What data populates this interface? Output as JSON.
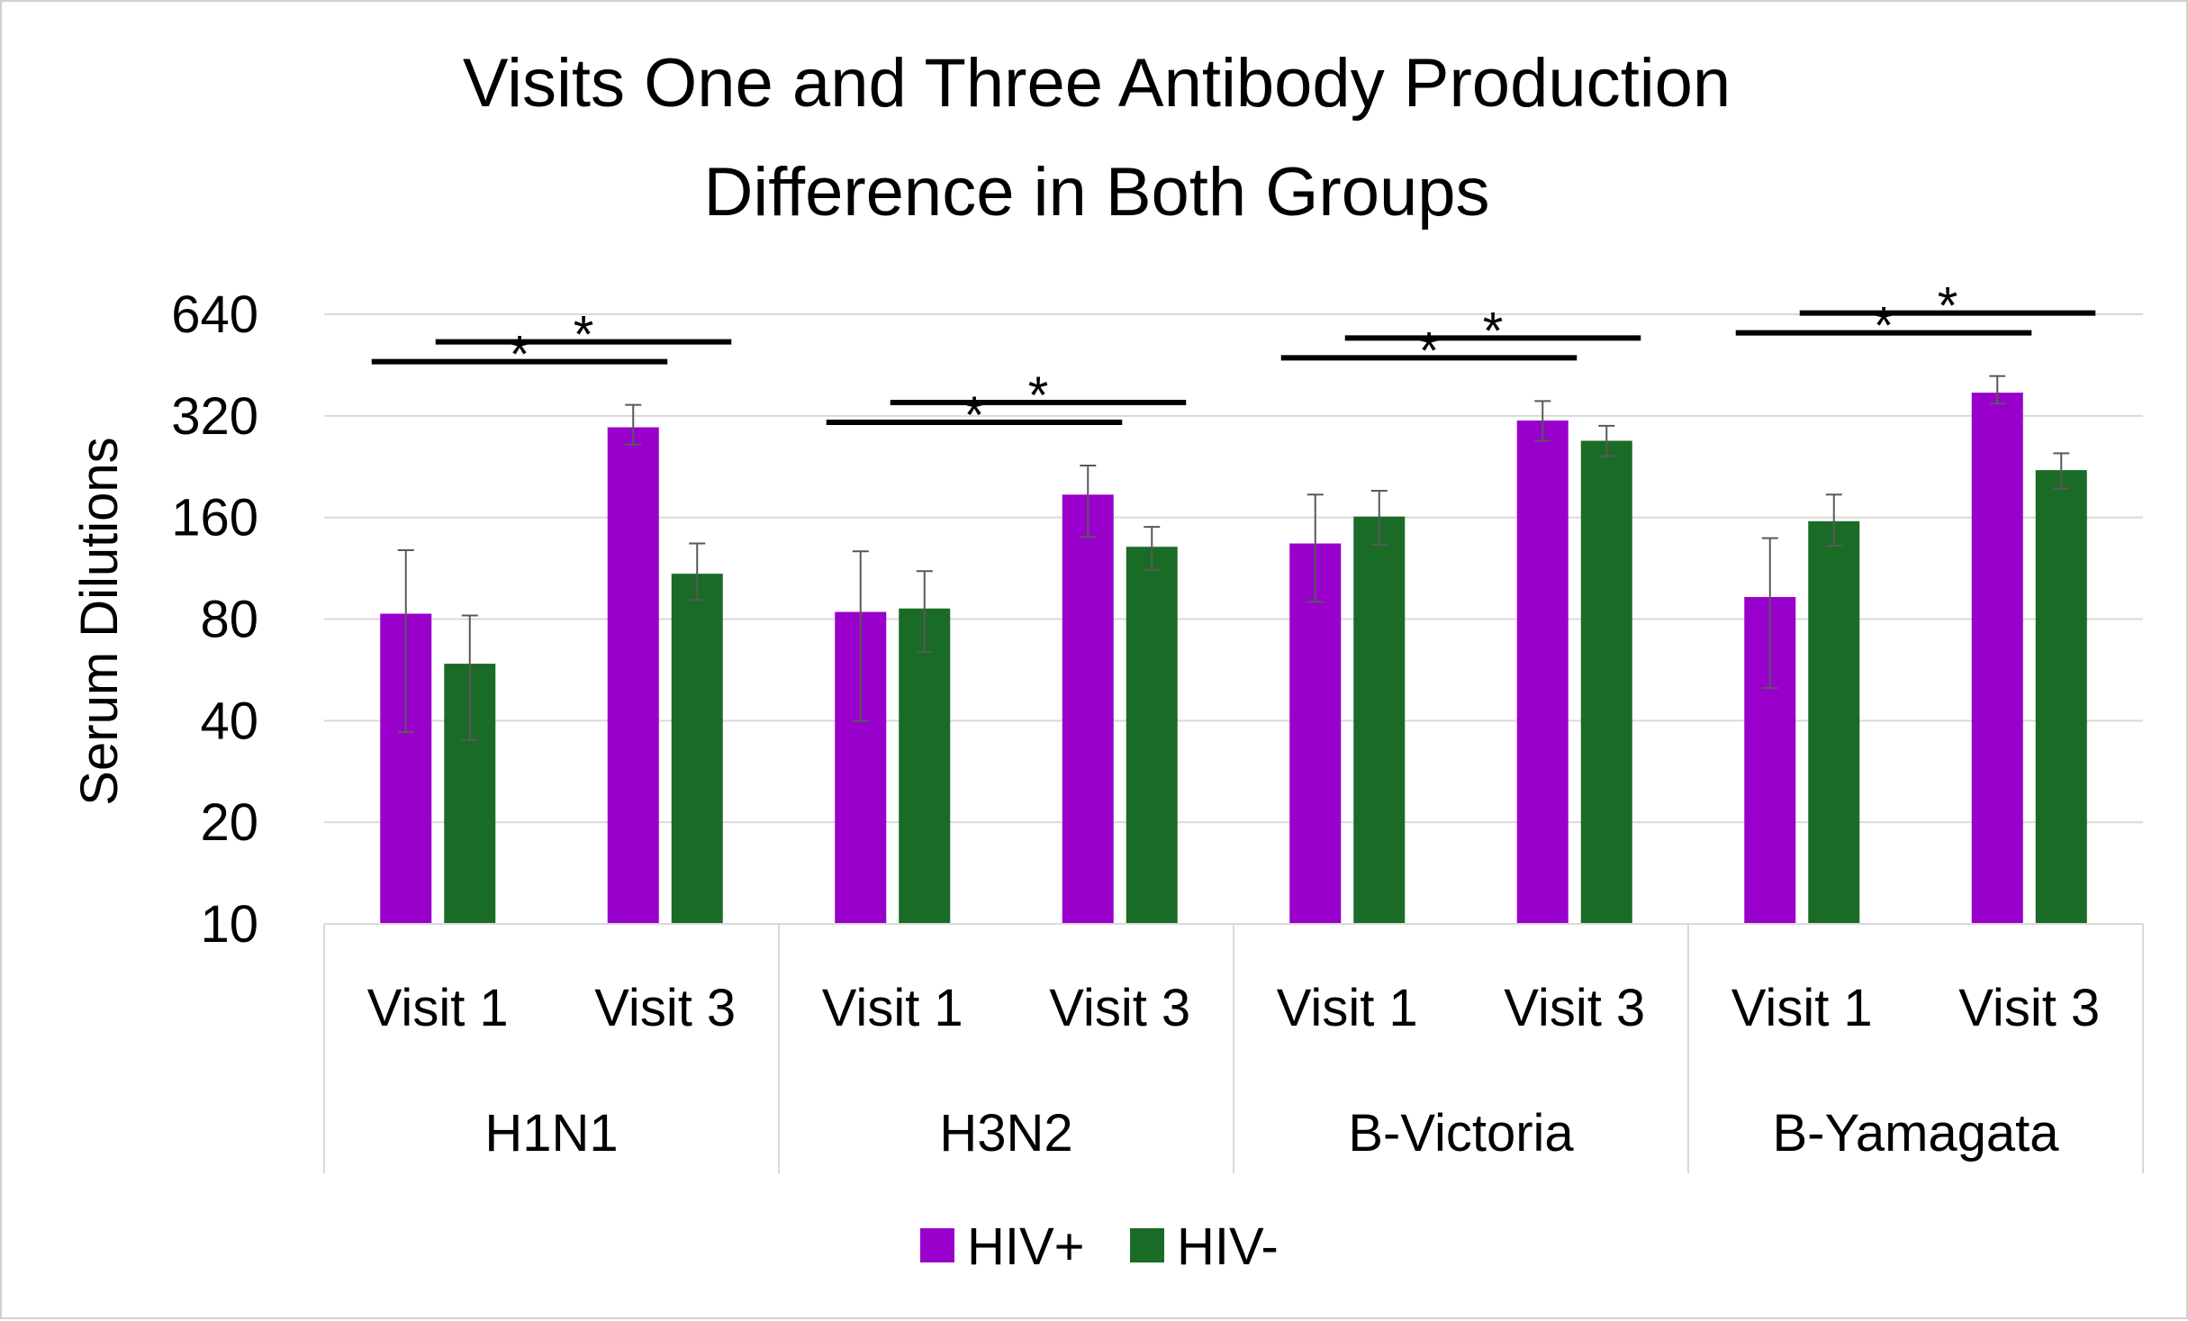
{
  "chart_data": {
    "type": "bar",
    "title_lines": [
      "Visits One and Three Antibody Production",
      "Difference in Both Groups"
    ],
    "ylabel": "Serum Dilutions",
    "y_scale": "log2",
    "ylim": [
      10,
      640
    ],
    "y_ticks": [
      "640",
      "320",
      "160",
      "80",
      "40",
      "20",
      "10"
    ],
    "groups": [
      "H1N1",
      "H3N2",
      "B-Victoria",
      "B-Yamagata"
    ],
    "visits": [
      "Visit 1",
      "Visit 3"
    ],
    "legend_position": "bottom",
    "grid": true,
    "series": [
      {
        "name": "HIV+",
        "color": "#9900cc",
        "values": [
          83,
          296,
          84,
          187,
          134,
          310,
          93,
          375
        ],
        "err_low": [
          37,
          263,
          40,
          140,
          90,
          270,
          50,
          348
        ],
        "err_high": [
          128,
          345,
          127,
          228,
          187,
          354,
          139,
          420
        ]
      },
      {
        "name": "HIV-",
        "color": "#1a6b26",
        "values": [
          59,
          109,
          86,
          131,
          161,
          270,
          156,
          221
        ],
        "err_low": [
          35,
          91,
          64,
          112,
          133,
          243,
          132,
          195
        ],
        "err_high": [
          82,
          134,
          111,
          150,
          192,
          299,
          187,
          248
        ]
      }
    ],
    "significance_marks": [
      {
        "group": "H1N1",
        "series": "HIV+",
        "label": "*"
      },
      {
        "group": "H1N1",
        "series": "HIV-",
        "label": "*"
      },
      {
        "group": "H3N2",
        "series": "HIV+",
        "label": "*"
      },
      {
        "group": "H3N2",
        "series": "HIV-",
        "label": "*"
      },
      {
        "group": "B-Victoria",
        "series": "HIV+",
        "label": "*"
      },
      {
        "group": "B-Victoria",
        "series": "HIV-",
        "label": "*"
      },
      {
        "group": "B-Yamagata",
        "series": "HIV+",
        "label": "*"
      },
      {
        "group": "B-Yamagata",
        "series": "HIV-",
        "label": "*"
      }
    ]
  }
}
